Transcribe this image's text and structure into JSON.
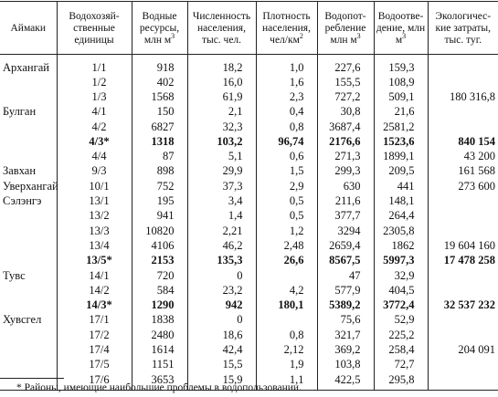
{
  "table": {
    "headers": [
      "Аймаки",
      "Водохозяй-ственные единицы",
      "Водные ресурсы, млн м³",
      "Численность населения, тыс. чел.",
      "Плотность населения, чел/км²",
      "Водопот-ребление млн м³",
      "Водоотве-дение, млн м³",
      "Экологичес-кие затраты, тыс. туг."
    ],
    "rows": [
      {
        "aimak": "Архангай",
        "unit": "1/1",
        "water": "918",
        "pop": "18,2",
        "density": "1,0",
        "use": "227,6",
        "disch": "159,3",
        "eco": "",
        "bold": false
      },
      {
        "aimak": "",
        "unit": "1/2",
        "water": "402",
        "pop": "16,0",
        "density": "1,6",
        "use": "155,5",
        "disch": "108,9",
        "eco": "",
        "bold": false
      },
      {
        "aimak": "",
        "unit": "1/3",
        "water": "1568",
        "pop": "61,9",
        "density": "2,3",
        "use": "727,2",
        "disch": "509,1",
        "eco": "180 316,8",
        "bold": false
      },
      {
        "aimak": "Булган",
        "unit": "4/1",
        "water": "150",
        "pop": "2,1",
        "density": "0,4",
        "use": "30,8",
        "disch": "21,6",
        "eco": "",
        "bold": false
      },
      {
        "aimak": "",
        "unit": "4/2",
        "water": "6827",
        "pop": "32,3",
        "density": "0,8",
        "use": "3687,4",
        "disch": "2581,2",
        "eco": "",
        "bold": false
      },
      {
        "aimak": "",
        "unit": "4/3*",
        "water": "1318",
        "pop": "103,2",
        "density": "96,74",
        "use": "2176,6",
        "disch": "1523,6",
        "eco": "840 154",
        "bold": true
      },
      {
        "aimak": "",
        "unit": "4/4",
        "water": "87",
        "pop": "5,1",
        "density": "0,6",
        "use": "271,3",
        "disch": "1899,1",
        "eco": "43 200",
        "bold": false
      },
      {
        "aimak": "Завхан",
        "unit": "9/3",
        "water": "898",
        "pop": "29,9",
        "density": "1,5",
        "use": "299,3",
        "disch": "209,5",
        "eco": "161 568",
        "bold": false
      },
      {
        "aimak": "Уверхангай",
        "unit": "10/1",
        "water": "752",
        "pop": "37,3",
        "density": "2,9",
        "use": "630",
        "disch": "441",
        "eco": "273 600",
        "bold": false
      },
      {
        "aimak": "Сэлэнгэ",
        "unit": "13/1",
        "water": "195",
        "pop": "3,4",
        "density": "0,5",
        "use": "211,6",
        "disch": "148,1",
        "eco": "",
        "bold": false
      },
      {
        "aimak": "",
        "unit": "13/2",
        "water": "941",
        "pop": "1,4",
        "density": "0,5",
        "use": "377,7",
        "disch": "264,4",
        "eco": "",
        "bold": false
      },
      {
        "aimak": "",
        "unit": "13/3",
        "water": "10820",
        "pop": "2,21",
        "density": "1,2",
        "use": "3294",
        "disch": "2305,8",
        "eco": "",
        "bold": false
      },
      {
        "aimak": "",
        "unit": "13/4",
        "water": "4106",
        "pop": "46,2",
        "density": "2,48",
        "use": "2659,4",
        "disch": "1862",
        "eco": "19 604 160",
        "bold": false
      },
      {
        "aimak": "",
        "unit": "13/5*",
        "water": "2153",
        "pop": "135,3",
        "density": "26,6",
        "use": "8567,5",
        "disch": "5997,3",
        "eco": "17 478 258",
        "bold": true
      },
      {
        "aimak": "Тувс",
        "unit": "14/1",
        "water": "720",
        "pop": "0",
        "density": "",
        "use": "47",
        "disch": "32,9",
        "eco": "",
        "bold": false
      },
      {
        "aimak": "",
        "unit": "14/2",
        "water": "584",
        "pop": "23,2",
        "density": "4,2",
        "use": "577,9",
        "disch": "404,5",
        "eco": "",
        "bold": false
      },
      {
        "aimak": "",
        "unit": "14/3*",
        "water": "1290",
        "pop": "942",
        "density": "180,1",
        "use": "5389,2",
        "disch": "3772,4",
        "eco": "32 537 232",
        "bold": true
      },
      {
        "aimak": "Хувсгел",
        "unit": "17/1",
        "water": "1838",
        "pop": "0",
        "density": "",
        "use": "75,6",
        "disch": "52,9",
        "eco": "",
        "bold": false
      },
      {
        "aimak": "",
        "unit": "17/2",
        "water": "2480",
        "pop": "18,6",
        "density": "0,8",
        "use": "321,7",
        "disch": "225,2",
        "eco": "",
        "bold": false
      },
      {
        "aimak": "",
        "unit": "17/4",
        "water": "1614",
        "pop": "42,4",
        "density": "2,12",
        "use": "369,2",
        "disch": "258,4",
        "eco": "204 091",
        "bold": false
      },
      {
        "aimak": "",
        "unit": "17/5",
        "water": "1151",
        "pop": "15,5",
        "density": "1,9",
        "use": "103,8",
        "disch": "72,7",
        "eco": "",
        "bold": false
      },
      {
        "aimak": "",
        "unit": "17/6",
        "water": "3653",
        "pop": "15,9",
        "density": "1,1",
        "use": "422,5",
        "disch": "295,8",
        "eco": "",
        "bold": false
      }
    ]
  },
  "footnote": "* Районы, имеющие наибольшие проблемы в водопользовании."
}
